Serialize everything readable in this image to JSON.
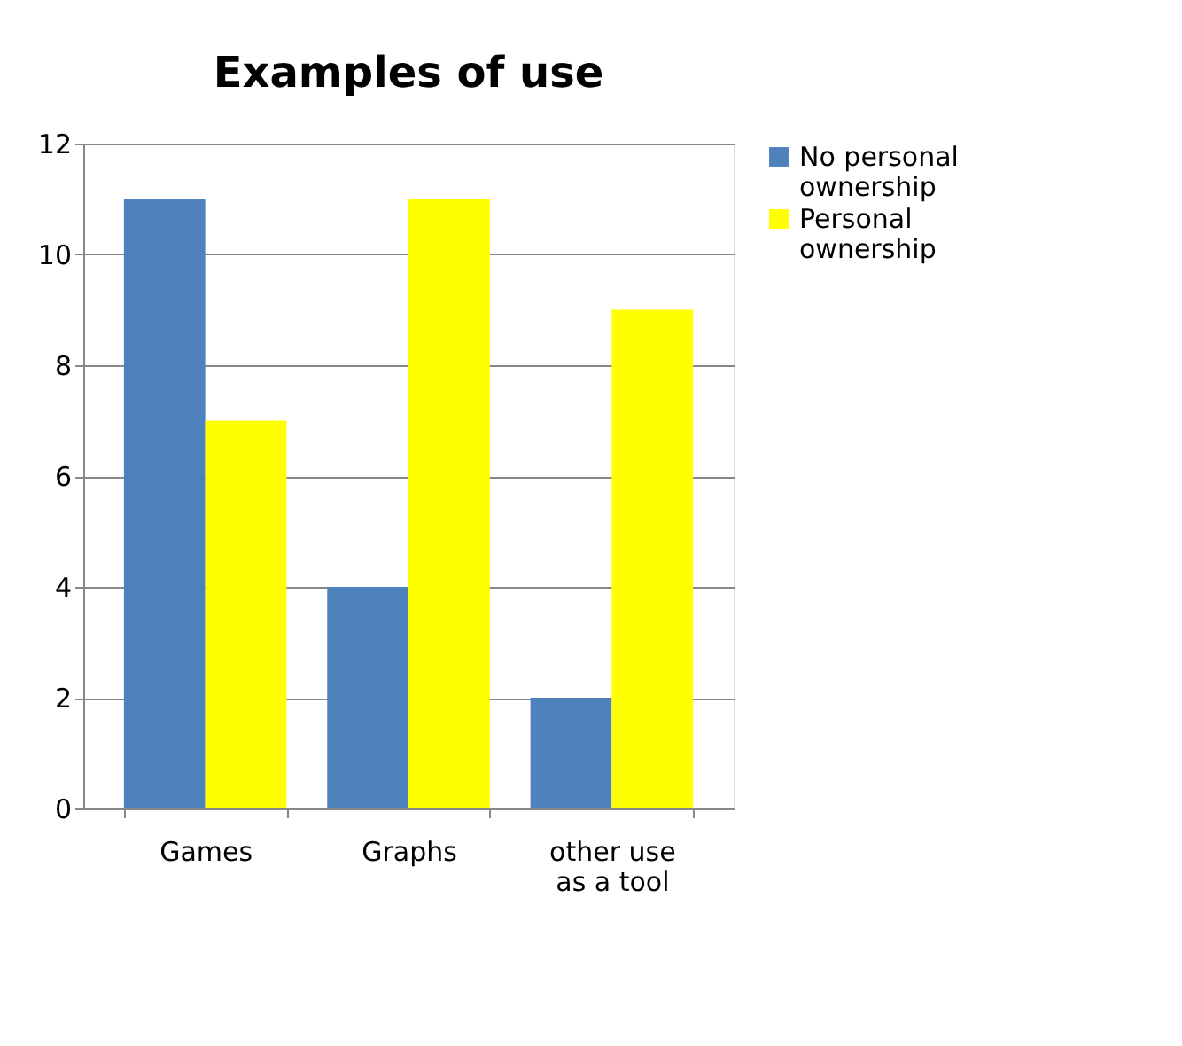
{
  "chart_data": {
    "type": "bar",
    "title": "Examples of use",
    "categories": [
      "Games",
      "Graphs",
      "other use as a tool"
    ],
    "series": [
      {
        "name": "No personal ownership",
        "color": "#4f81bd",
        "values": [
          11,
          4,
          2
        ]
      },
      {
        "name": "Personal ownership",
        "color": "#ffff00",
        "values": [
          7,
          11,
          9
        ]
      }
    ],
    "ylim": [
      0,
      12
    ],
    "yticks": [
      0,
      2,
      4,
      6,
      8,
      10,
      12
    ],
    "grid": "y",
    "legend": "right"
  }
}
